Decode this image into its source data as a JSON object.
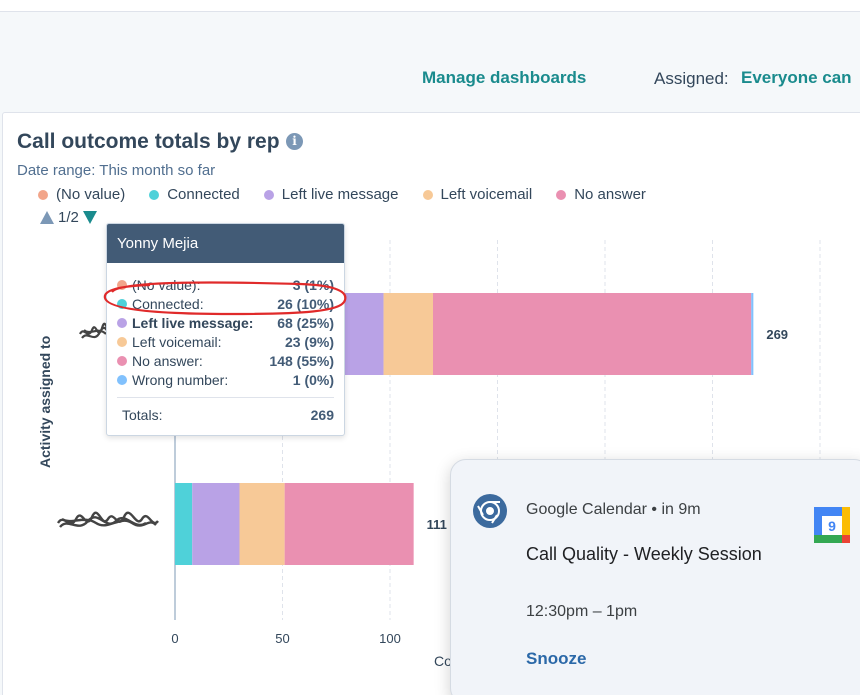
{
  "header": {
    "manage_label": "Manage dashboards",
    "assigned_label": "Assigned:",
    "assigned_value": "Everyone can"
  },
  "report": {
    "title": "Call outcome totals by rep",
    "info_icon": "info-icon",
    "date_range": "Date range: This month so far",
    "legend": [
      {
        "label": "(No value)",
        "color": "#f2a58a"
      },
      {
        "label": "Connected",
        "color": "#4fd1d9"
      },
      {
        "label": "Left live message",
        "color": "#b9a2e6"
      },
      {
        "label": "Left voicemail",
        "color": "#f7c997"
      },
      {
        "label": "No answer",
        "color": "#ea90b1"
      }
    ],
    "pager": "1/2",
    "y_axis_title": "Activity assigned to",
    "x_axis_title": "Co"
  },
  "chart_data": {
    "type": "bar",
    "orientation": "horizontal",
    "stacked": true,
    "categories": [
      "Yonny Mejia",
      ""
    ],
    "series": [
      {
        "name": "(No value)",
        "color": "#f2a58a",
        "values": [
          3,
          0
        ]
      },
      {
        "name": "Connected",
        "color": "#4fd1d9",
        "values": [
          26,
          8
        ]
      },
      {
        "name": "Left live message",
        "color": "#b9a2e6",
        "values": [
          68,
          22
        ]
      },
      {
        "name": "Left voicemail",
        "color": "#f7c997",
        "values": [
          23,
          21
        ]
      },
      {
        "name": "No answer",
        "color": "#ea90b1",
        "values": [
          148,
          60
        ]
      },
      {
        "name": "Wrong number",
        "color": "#81c1fd",
        "values": [
          1,
          0
        ]
      }
    ],
    "totals": [
      269,
      111
    ],
    "x_ticks": [
      0,
      50,
      100
    ],
    "grid": true
  },
  "tooltip": {
    "name": "Yonny Mejia",
    "rows": [
      {
        "label": "(No value):",
        "value": "3 (1%)",
        "color": "#f2a58a",
        "bold": false
      },
      {
        "label": "Connected:",
        "value": "26 (10%)",
        "color": "#4fd1d9",
        "bold": false
      },
      {
        "label": "Left live message:",
        "value": "68 (25%)",
        "color": "#b9a2e6",
        "bold": true
      },
      {
        "label": "Left voicemail:",
        "value": "23 (9%)",
        "color": "#f7c997",
        "bold": false
      },
      {
        "label": "No answer:",
        "value": "148 (55%)",
        "color": "#ea90b1",
        "bold": false
      },
      {
        "label": "Wrong number:",
        "value": "1 (0%)",
        "color": "#81c1fd",
        "bold": false
      }
    ],
    "total_label": "Totals:",
    "total_value": "269"
  },
  "notification": {
    "source": "Google Calendar  •  in 9m",
    "title": "Call Quality - Weekly Session",
    "time": "12:30pm – 1pm",
    "snooze": "Snooze",
    "gcal_day": "9"
  }
}
